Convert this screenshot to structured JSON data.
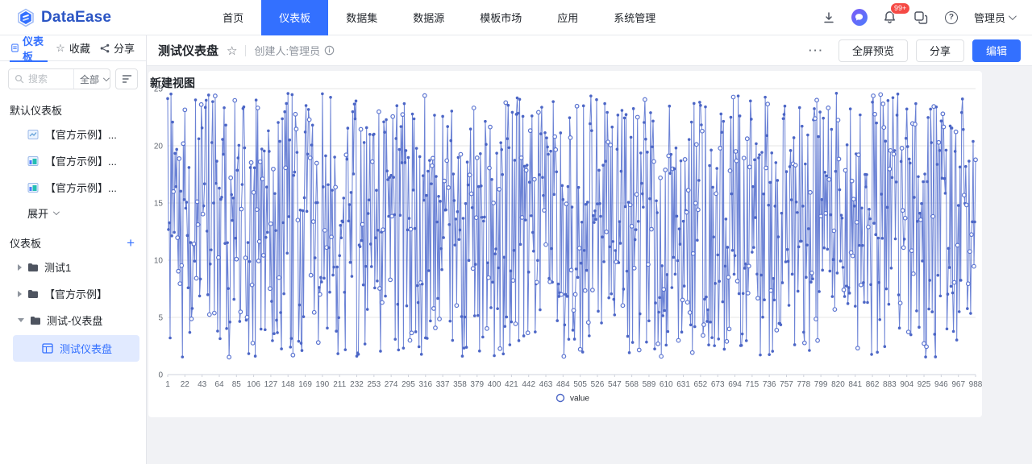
{
  "topnav": {
    "logo_text": "DataEase",
    "items": [
      "首页",
      "仪表板",
      "数据集",
      "数据源",
      "模板市场",
      "应用",
      "系统管理"
    ],
    "active_item": "仪表板",
    "notification_badge": "99+",
    "user_label": "管理员",
    "icons": [
      "download-icon",
      "message-icon",
      "bell-icon",
      "apps-icon",
      "help-icon"
    ]
  },
  "sidebar": {
    "tabs": [
      {
        "label": "仪表板",
        "icon": "document-icon",
        "active": true
      },
      {
        "label": "收藏",
        "icon": "star-icon",
        "active": false
      },
      {
        "label": "分享",
        "icon": "share-icon",
        "active": false
      }
    ],
    "search": {
      "placeholder": "搜索",
      "scope_value": "全部"
    },
    "default_section_title": "默认仪表板",
    "default_items": [
      "【官方示例】...",
      "【官方示例】...",
      "【官方示例】..."
    ],
    "expand_label": "展开",
    "section_title": "仪表板",
    "tree": [
      {
        "label": "测试1",
        "expanded": false
      },
      {
        "label": "【官方示例】",
        "expanded": false
      },
      {
        "label": "测试-仪表盘",
        "expanded": true
      }
    ],
    "selected_child": "测试仪表盘"
  },
  "header": {
    "title": "测试仪表盘",
    "creator_label": "创建人:管理员",
    "more_label": "···",
    "preview_button": "全屏预览",
    "share_button": "分享",
    "edit_button": "编辑"
  },
  "colors": {
    "accent": "#3370ff",
    "line": "#5b74d0",
    "point": "#4c66c6",
    "badge": "#f54a45",
    "grid": "#e6e6e6",
    "axis_line": "#cfd3dc",
    "axis_text": "#646a73"
  },
  "chart_data": {
    "type": "line",
    "title": "新建视图",
    "legend": [
      "value"
    ],
    "legend_position": "bottom",
    "grid": true,
    "xlabel": "",
    "ylabel": "",
    "xlim": [
      1,
      988
    ],
    "ylim": [
      0,
      25
    ],
    "y_ticks": [
      0,
      5,
      10,
      15,
      20,
      25
    ],
    "x_ticks": [
      1,
      22,
      43,
      64,
      85,
      106,
      127,
      148,
      169,
      190,
      211,
      232,
      253,
      274,
      295,
      316,
      337,
      358,
      379,
      400,
      421,
      442,
      463,
      484,
      505,
      526,
      547,
      568,
      589,
      610,
      631,
      652,
      673,
      694,
      715,
      736,
      757,
      778,
      799,
      820,
      841,
      862,
      883,
      904,
      925,
      946,
      967,
      988
    ],
    "series": [
      {
        "name": "value",
        "points": 988,
        "min": 1.5,
        "max": 24.6,
        "distribution": "uniform_random",
        "seed": 12345,
        "hollow_point_ratio": 0.25
      }
    ]
  }
}
